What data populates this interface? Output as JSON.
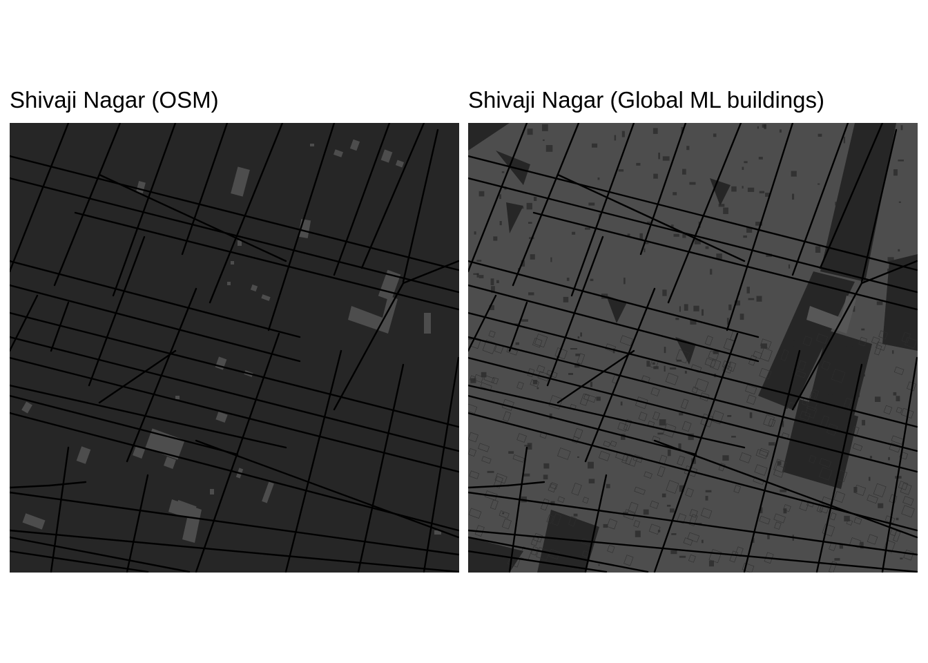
{
  "panels": [
    {
      "title": "Shivaji Nagar (OSM)",
      "buildings": "sparse"
    },
    {
      "title": "Shivaji Nagar (Global ML buildings)",
      "buildings": "dense"
    }
  ],
  "colors": {
    "background": "#262626",
    "building": "#4d4d4d",
    "road": "#000000",
    "page": "#ffffff"
  }
}
